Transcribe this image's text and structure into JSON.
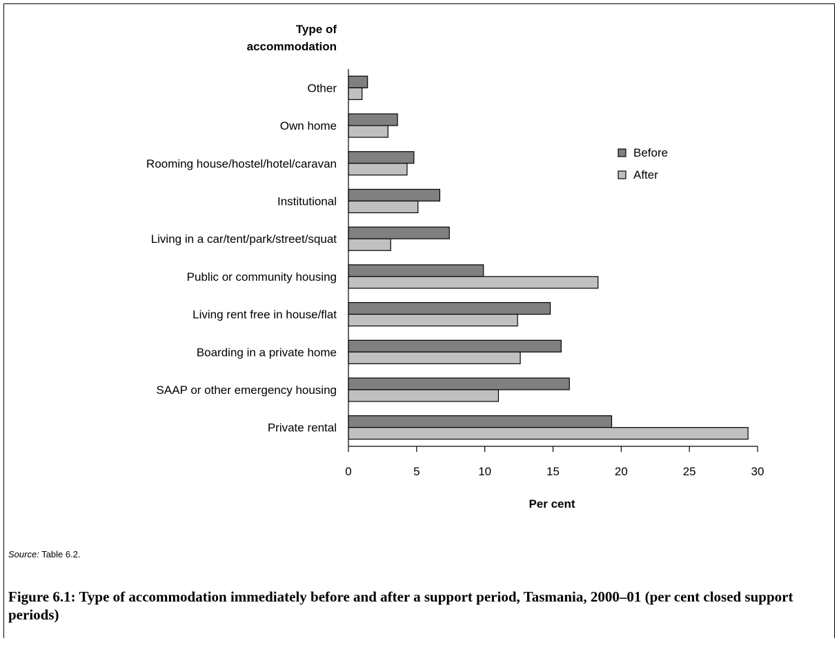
{
  "chart_data": {
    "type": "bar",
    "orientation": "horizontal",
    "category_axis_title": [
      "Type of",
      "accommodation"
    ],
    "xlabel": "Per cent",
    "xlim": [
      0,
      30
    ],
    "xticks": [
      0,
      5,
      10,
      15,
      20,
      25,
      30
    ],
    "grid": false,
    "legend_position": "right",
    "categories": [
      "Other",
      "Own home",
      "Rooming house/hostel/hotel/caravan",
      "Institutional",
      "Living in a car/tent/park/street/squat",
      "Public or community housing",
      "Living rent free in house/flat",
      "Boarding in a private home",
      "SAAP or other emergency housing",
      "Private rental"
    ],
    "series": [
      {
        "name": "Before",
        "color": "#808080",
        "values": [
          1.4,
          3.6,
          4.8,
          6.7,
          7.4,
          9.9,
          14.8,
          15.6,
          16.2,
          19.3
        ]
      },
      {
        "name": "After",
        "color": "#c0c0c0",
        "values": [
          1.0,
          2.9,
          4.3,
          5.1,
          3.1,
          18.3,
          12.4,
          12.6,
          11.0,
          29.3
        ]
      }
    ]
  },
  "source": {
    "label": "Source:",
    "text": "Table 6.2."
  },
  "caption": "Figure 6.1: Type of accommodation immediately before and after a support period, Tasmania, 2000–01 (per cent closed support periods)"
}
